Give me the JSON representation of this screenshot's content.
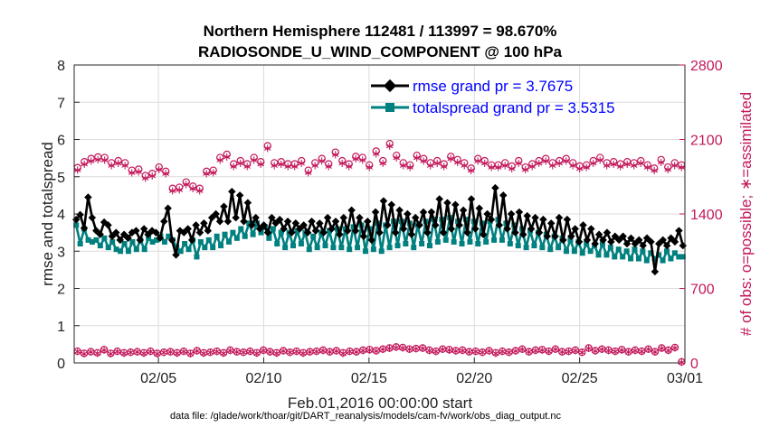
{
  "chart_data": {
    "type": "line",
    "title": "Northern Hemisphere 112481 / 113997 = 98.670%",
    "subtitle": "RADIOSONDE_U_WIND_COMPONENT @ 100 hPa",
    "xlabel": "Feb.01,2016 00:00:00 start",
    "ylabel_left": "rmse and totalspread",
    "ylabel_right": "# of obs: o=possible; ∗=assimilated",
    "footnote": "data file: /glade/work/thoar/git/DART_reanalysis/models/cam-fv/work/obs_diag_output.nc",
    "x_ticks": [
      "02/05",
      "02/10",
      "02/15",
      "02/20",
      "02/25",
      "03/01"
    ],
    "ylim_left": [
      0,
      8
    ],
    "y_ticks_left": [
      "0",
      "1",
      "2",
      "3",
      "4",
      "5",
      "6",
      "7",
      "8"
    ],
    "ylim_right": [
      0,
      2800
    ],
    "y_ticks_right": [
      "0",
      "700",
      "1400",
      "2100",
      "2800"
    ],
    "legend_position": "top-right",
    "grid": true,
    "colors": {
      "rmse": "#000000",
      "totalspread": "#00807f",
      "obs": "#c2185b",
      "legend_text": "#0000ff"
    },
    "series": [
      {
        "name": "rmse grand pr = 3.7675",
        "marker": "diamond",
        "values": [
          3.85,
          3.98,
          3.62,
          4.45,
          3.9,
          3.55,
          3.45,
          3.78,
          3.7,
          3.4,
          3.5,
          3.3,
          3.45,
          3.35,
          3.5,
          3.55,
          3.3,
          3.6,
          3.45,
          3.55,
          3.5,
          3.35,
          3.8,
          4.15,
          3.3,
          2.9,
          3.55,
          3.5,
          3.6,
          3.3,
          3.7,
          3.5,
          3.75,
          3.55,
          3.9,
          4.0,
          3.8,
          4.2,
          3.8,
          4.6,
          3.9,
          4.5,
          3.8,
          4.3,
          3.7,
          3.9,
          3.6,
          3.7,
          3.5,
          3.9,
          3.75,
          3.85,
          3.6,
          3.8,
          3.5,
          3.75,
          3.6,
          3.7,
          3.5,
          3.8,
          3.55,
          3.75,
          3.5,
          3.9,
          3.6,
          3.8,
          3.45,
          3.9,
          3.55,
          4.1,
          3.55,
          3.9,
          3.4,
          3.8,
          3.3,
          4.05,
          3.5,
          4.35,
          3.7,
          4.25,
          3.5,
          4.1,
          3.6,
          4.0,
          3.45,
          3.9,
          3.7,
          4.05,
          3.5,
          4.05,
          3.7,
          4.4,
          3.5,
          4.3,
          3.6,
          4.25,
          3.7,
          4.1,
          3.5,
          4.4,
          3.6,
          4.15,
          3.45,
          4.0,
          3.85,
          4.7,
          3.7,
          4.5,
          3.6,
          4.0,
          3.5,
          4.05,
          3.45,
          3.95,
          3.6,
          3.9,
          3.5,
          3.85,
          3.4,
          3.75,
          3.4,
          3.9,
          3.3,
          3.85,
          3.4,
          3.6,
          3.25,
          3.7,
          3.3,
          3.6,
          3.2,
          3.45,
          3.3,
          3.5,
          3.25,
          3.4,
          3.3,
          3.4,
          3.2,
          3.35,
          3.2,
          3.3,
          3.15,
          3.35,
          3.25,
          2.45,
          3.2,
          3.3,
          3.15,
          3.35,
          3.25,
          3.55,
          3.15
        ]
      },
      {
        "name": "totalspread grand pr = 3.5315",
        "marker": "square",
        "values": [
          3.7,
          3.2,
          3.6,
          3.3,
          3.25,
          3.3,
          3.15,
          3.35,
          3.1,
          3.25,
          3.05,
          3.0,
          3.2,
          3.0,
          3.25,
          3.05,
          3.3,
          3.05,
          3.35,
          3.25,
          3.3,
          3.4,
          3.25,
          3.4,
          3.3,
          3.1,
          3.0,
          3.2,
          3.05,
          3.3,
          2.85,
          3.25,
          3.1,
          3.3,
          3.1,
          3.4,
          3.15,
          3.45,
          3.25,
          3.5,
          3.35,
          3.6,
          3.4,
          3.75,
          3.45,
          3.75,
          3.5,
          3.65,
          3.35,
          3.6,
          3.2,
          3.5,
          3.1,
          3.5,
          3.15,
          3.55,
          3.2,
          3.5,
          3.05,
          3.4,
          3.1,
          3.5,
          3.15,
          3.55,
          3.1,
          3.6,
          3.1,
          3.6,
          3.05,
          3.65,
          3.1,
          3.7,
          3.0,
          3.6,
          3.05,
          3.75,
          3.0,
          3.7,
          3.1,
          3.8,
          3.15,
          3.8,
          3.2,
          3.75,
          3.1,
          3.7,
          3.2,
          3.8,
          3.15,
          3.85,
          3.25,
          3.85,
          3.3,
          3.9,
          3.25,
          3.8,
          3.2,
          3.85,
          3.25,
          3.8,
          3.2,
          3.75,
          3.25,
          3.8,
          3.3,
          3.85,
          3.3,
          3.75,
          3.2,
          3.7,
          3.15,
          3.6,
          3.1,
          3.55,
          3.15,
          3.5,
          3.1,
          3.45,
          3.05,
          3.4,
          3.1,
          3.35,
          3.0,
          3.3,
          3.0,
          3.25,
          2.95,
          3.2,
          3.0,
          3.15,
          2.9,
          3.2,
          2.9,
          3.1,
          2.85,
          3.05,
          2.85,
          3.0,
          2.8,
          3.05,
          2.8,
          3.0,
          2.75,
          2.95,
          2.8,
          2.9,
          2.75,
          3.0,
          2.8,
          2.95,
          2.85,
          2.85
        ]
      }
    ],
    "obs_possible": [
      1835,
      1890,
      1920,
      1935,
      1930,
      1880,
      1900,
      1880,
      1810,
      1820,
      1760,
      1780,
      1840,
      1800,
      1640,
      1650,
      1700,
      1660,
      1640,
      1800,
      1810,
      1930,
      1960,
      1870,
      1900,
      1870,
      1930,
      1890,
      2040,
      1880,
      1890,
      1870,
      1870,
      1900,
      1810,
      1880,
      1920,
      1870,
      1980,
      1900,
      1870,
      1940,
      1930,
      1860,
      1990,
      1900,
      2060,
      1950,
      1880,
      1860,
      1950,
      1920,
      1880,
      1900,
      1870,
      1940,
      1910,
      1880,
      1830,
      1920,
      1900,
      1860,
      1860,
      1880,
      1850,
      1900,
      1840,
      1870,
      1900,
      1920,
      1880,
      1900,
      1920,
      1880,
      1850,
      1860,
      1900,
      1930,
      1880,
      1890,
      1870,
      1890,
      1880,
      1900,
      1860,
      1830,
      1910,
      1840,
      1880,
      1860
    ],
    "obs_assimilated": [
      1815,
      1870,
      1900,
      1915,
      1910,
      1860,
      1880,
      1860,
      1790,
      1800,
      1740,
      1760,
      1820,
      1780,
      1620,
      1630,
      1680,
      1640,
      1620,
      1780,
      1790,
      1910,
      1940,
      1850,
      1880,
      1850,
      1910,
      1870,
      2020,
      1860,
      1870,
      1850,
      1850,
      1880,
      1790,
      1860,
      1900,
      1850,
      1960,
      1880,
      1850,
      1920,
      1910,
      1840,
      1970,
      1880,
      2040,
      1930,
      1860,
      1840,
      1930,
      1900,
      1860,
      1880,
      1850,
      1920,
      1890,
      1860,
      1810,
      1900,
      1880,
      1840,
      1840,
      1860,
      1830,
      1880,
      1820,
      1850,
      1880,
      1900,
      1860,
      1880,
      1900,
      1860,
      1830,
      1840,
      1880,
      1910,
      1860,
      1870,
      1850,
      1870,
      1860,
      1880,
      1840,
      1810,
      1890,
      1820,
      1860,
      1840
    ],
    "obs_low_possible": [
      110,
      90,
      105,
      95,
      125,
      90,
      110,
      95,
      100,
      105,
      95,
      110,
      90,
      100,
      105,
      95,
      110,
      90,
      115,
      95,
      100,
      110,
      95,
      120,
      105,
      100,
      110,
      95,
      120,
      105,
      95,
      115,
      100,
      110,
      95,
      105,
      110,
      120,
      105,
      115,
      95,
      110,
      105,
      120,
      125,
      115,
      130,
      140,
      150,
      145,
      130,
      135,
      140,
      120,
      110,
      130,
      125,
      115,
      120,
      105,
      110,
      100,
      115,
      95,
      110,
      100,
      115,
      130,
      105,
      120,
      125,
      110,
      130,
      105,
      110,
      120,
      100,
      140,
      115,
      130,
      120,
      110,
      125,
      105,
      120,
      110,
      130,
      105,
      140,
      120,
      145,
      10
    ]
  }
}
